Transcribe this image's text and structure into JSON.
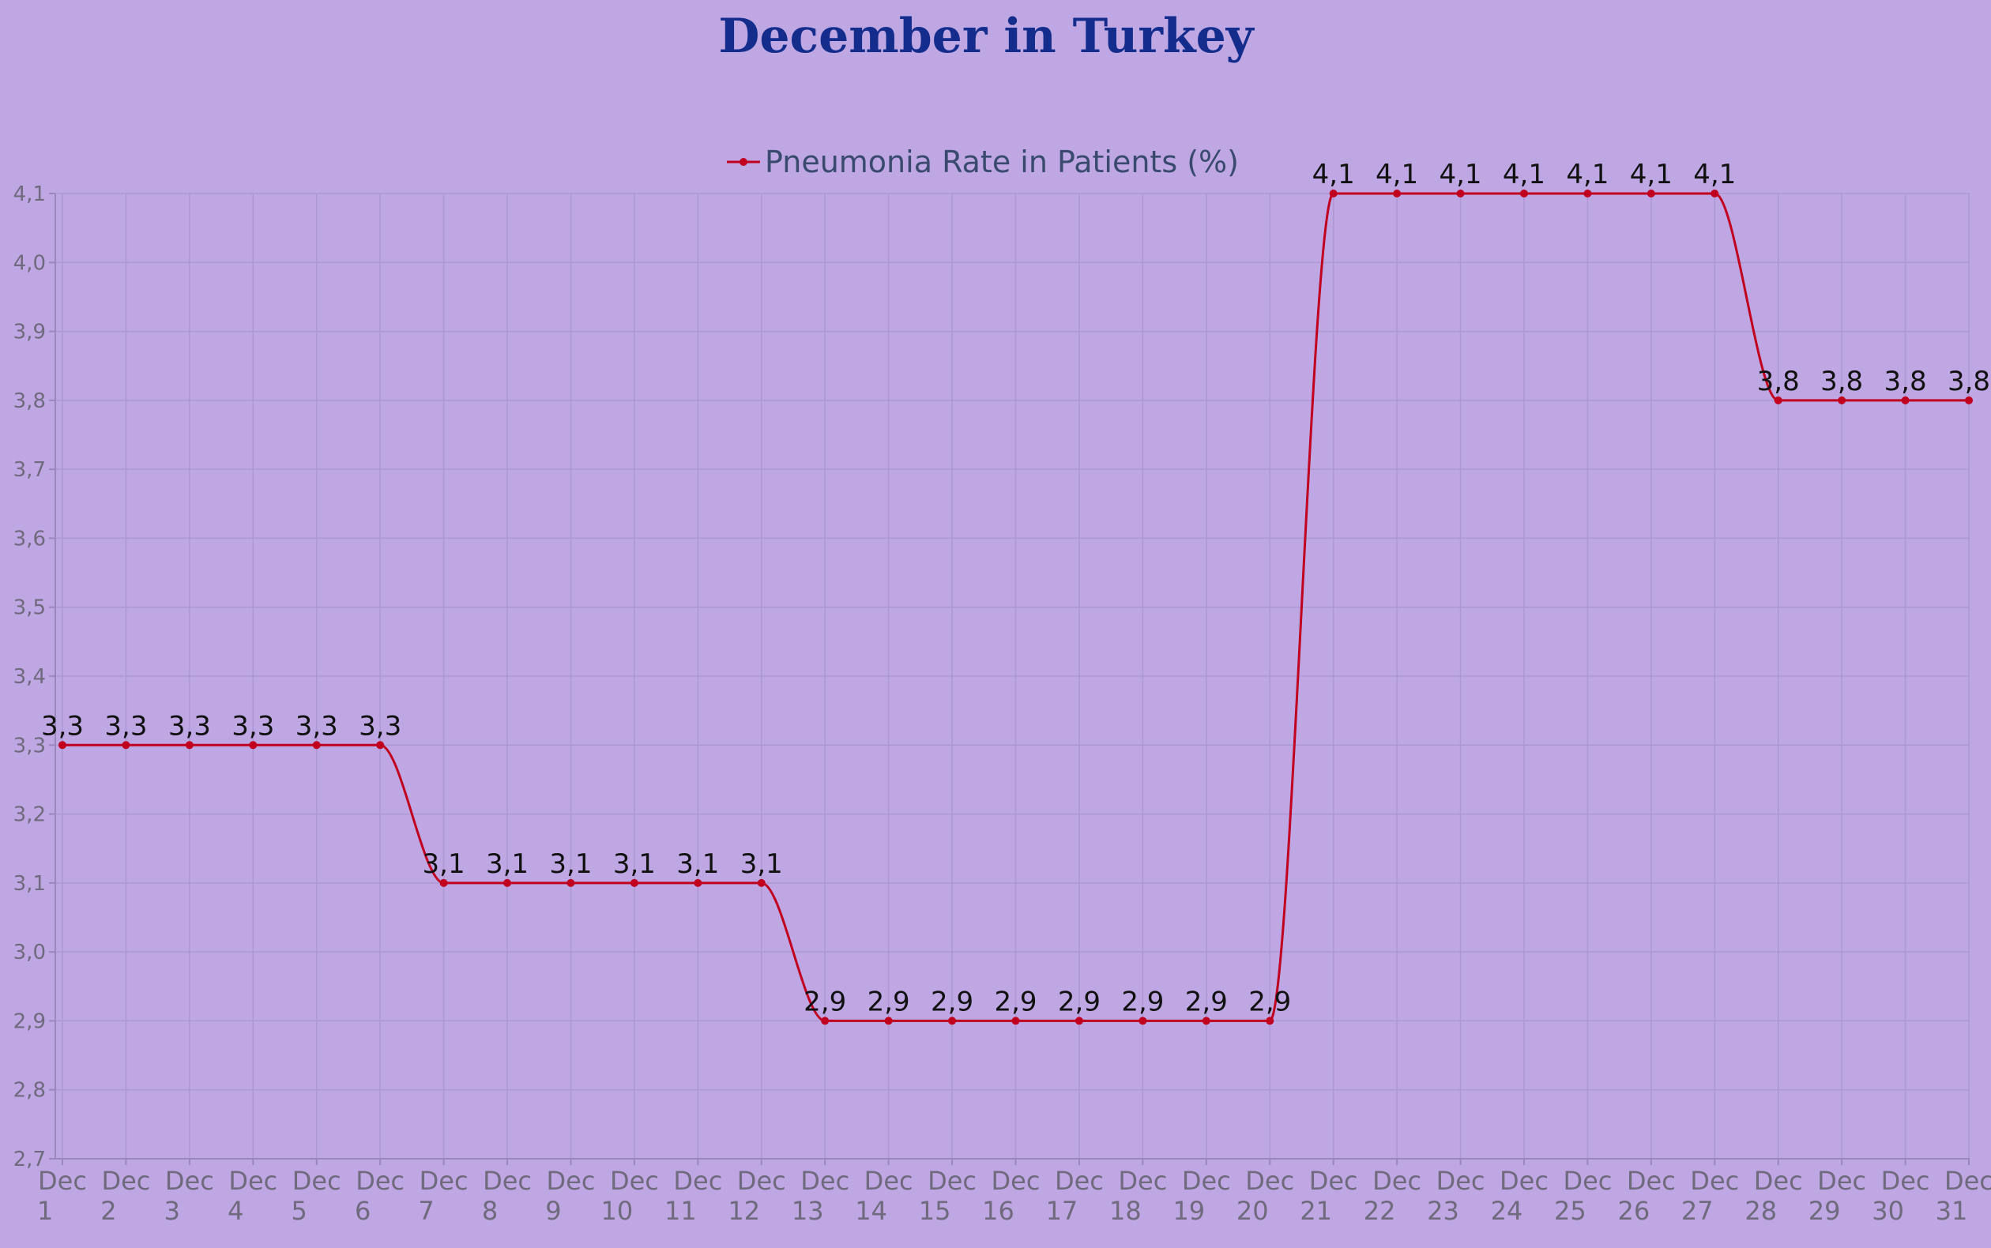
{
  "chart_data": {
    "type": "line",
    "title": "December in Turkey",
    "series": [
      {
        "name": "Pneumonia Rate in Patients (%)",
        "color": "#c0001e",
        "values": [
          3.3,
          3.3,
          3.3,
          3.3,
          3.3,
          3.3,
          3.1,
          3.1,
          3.1,
          3.1,
          3.1,
          3.1,
          2.9,
          2.9,
          2.9,
          2.9,
          2.9,
          2.9,
          2.9,
          2.9,
          4.1,
          4.1,
          4.1,
          4.1,
          4.1,
          4.1,
          4.1,
          3.8,
          3.8,
          3.8,
          3.8
        ]
      }
    ],
    "categories": [
      [
        "Dec",
        "1"
      ],
      [
        "Dec",
        "2"
      ],
      [
        "Dec",
        "3"
      ],
      [
        "Dec",
        "4"
      ],
      [
        "Dec",
        "5"
      ],
      [
        "Dec",
        "6"
      ],
      [
        "Dec",
        "7"
      ],
      [
        "Dec",
        "8"
      ],
      [
        "Dec",
        "9"
      ],
      [
        "Dec",
        "10"
      ],
      [
        "Dec",
        "11"
      ],
      [
        "Dec",
        "12"
      ],
      [
        "Dec",
        "13"
      ],
      [
        "Dec",
        "14"
      ],
      [
        "Dec",
        "15"
      ],
      [
        "Dec",
        "16"
      ],
      [
        "Dec",
        "17"
      ],
      [
        "Dec",
        "18"
      ],
      [
        "Dec",
        "19"
      ],
      [
        "Dec",
        "20"
      ],
      [
        "Dec",
        "21"
      ],
      [
        "Dec",
        "22"
      ],
      [
        "Dec",
        "23"
      ],
      [
        "Dec",
        "24"
      ],
      [
        "Dec",
        "25"
      ],
      [
        "Dec",
        "26"
      ],
      [
        "Dec",
        "27"
      ],
      [
        "Dec",
        "28"
      ],
      [
        "Dec",
        "29"
      ],
      [
        "Dec",
        "30"
      ],
      [
        "Dec",
        "31"
      ]
    ],
    "ylim": [
      2.7,
      4.1
    ],
    "yticks": [
      "2,7",
      "2,8",
      "2,9",
      "3,0",
      "3,1",
      "3,2",
      "3,3",
      "3,4",
      "3,5",
      "3,6",
      "3,7",
      "3,8",
      "3,9",
      "4,0",
      "4,1"
    ],
    "data_labels": [
      "3,3",
      "3,3",
      "3,3",
      "3,3",
      "3,3",
      "3,3",
      "3,1",
      "3,1",
      "3,1",
      "3,1",
      "3,1",
      "3,1",
      "2,9",
      "2,9",
      "2,9",
      "2,9",
      "2,9",
      "2,9",
      "2,9",
      "2,9",
      "4,1",
      "4,1",
      "4,1",
      "4,1",
      "4,1",
      "4,1",
      "4,1",
      "3,8",
      "3,8",
      "3,8",
      "3,8"
    ],
    "legend_position": "top",
    "grid": true,
    "background": "#bea7e3",
    "title_color": "#142d8c"
  }
}
